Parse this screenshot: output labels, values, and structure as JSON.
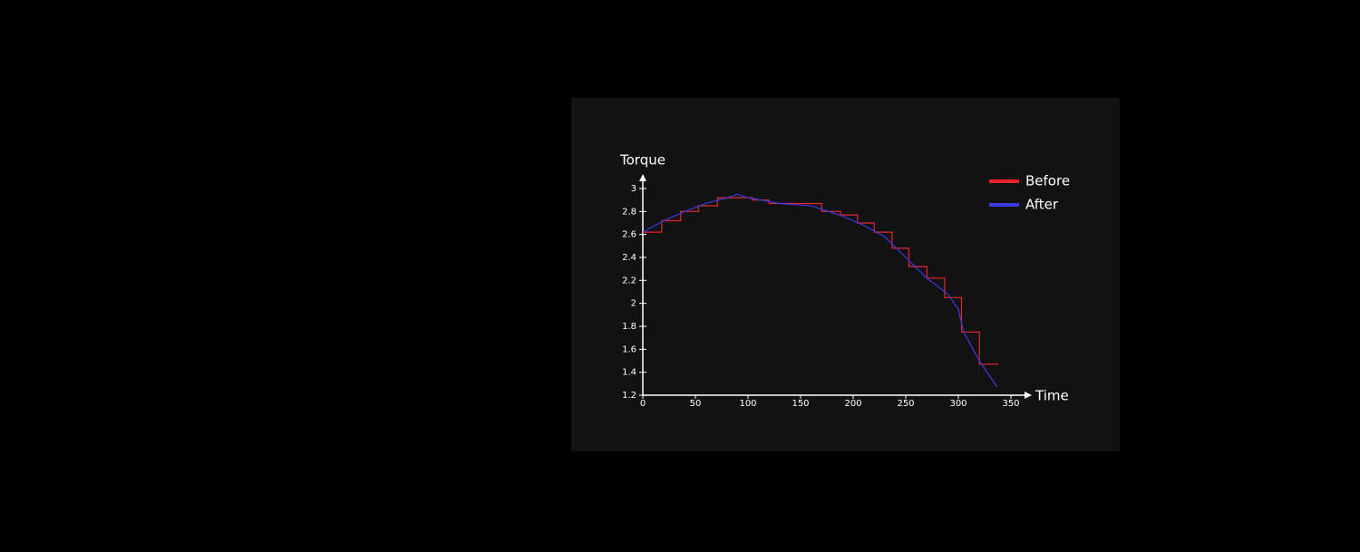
{
  "chart_data": {
    "type": "line",
    "y_label": "Torque",
    "x_label": "Time",
    "xlim": [
      0,
      350
    ],
    "xticks": [
      0,
      50,
      100,
      150,
      200,
      250,
      300,
      350
    ],
    "ylim": [
      1.2,
      3
    ],
    "yticks": [
      1.2,
      1.4,
      1.6,
      1.8,
      2,
      2.2,
      2.4,
      2.6,
      2.8,
      3
    ],
    "legend": "top-right",
    "series": [
      {
        "name": "Before",
        "color": "#e8262a",
        "x": [
          0,
          18,
          18,
          36,
          36,
          53,
          53,
          71,
          71,
          104,
          104,
          120,
          120,
          170,
          170,
          188,
          188,
          204,
          204,
          220,
          220,
          237,
          237,
          253,
          253,
          270,
          270,
          287,
          287,
          303,
          303,
          320,
          320,
          338
        ],
        "values": [
          2.62,
          2.62,
          2.72,
          2.72,
          2.8,
          2.8,
          2.85,
          2.85,
          2.92,
          2.92,
          2.9,
          2.9,
          2.87,
          2.87,
          2.8,
          2.8,
          2.77,
          2.77,
          2.7,
          2.7,
          2.62,
          2.62,
          2.48,
          2.48,
          2.32,
          2.32,
          2.22,
          2.22,
          2.05,
          2.05,
          1.75,
          1.75,
          1.47,
          1.47
        ]
      },
      {
        "name": "After",
        "color": "#3a3ae0",
        "x": [
          0,
          20,
          40,
          60,
          80,
          90,
          100,
          130,
          160,
          190,
          210,
          230,
          250,
          270,
          290,
          300,
          305,
          320,
          337
        ],
        "values": [
          2.62,
          2.72,
          2.8,
          2.87,
          2.92,
          2.95,
          2.92,
          2.87,
          2.85,
          2.76,
          2.68,
          2.58,
          2.4,
          2.22,
          2.08,
          1.95,
          1.75,
          1.5,
          1.27
        ]
      }
    ]
  }
}
